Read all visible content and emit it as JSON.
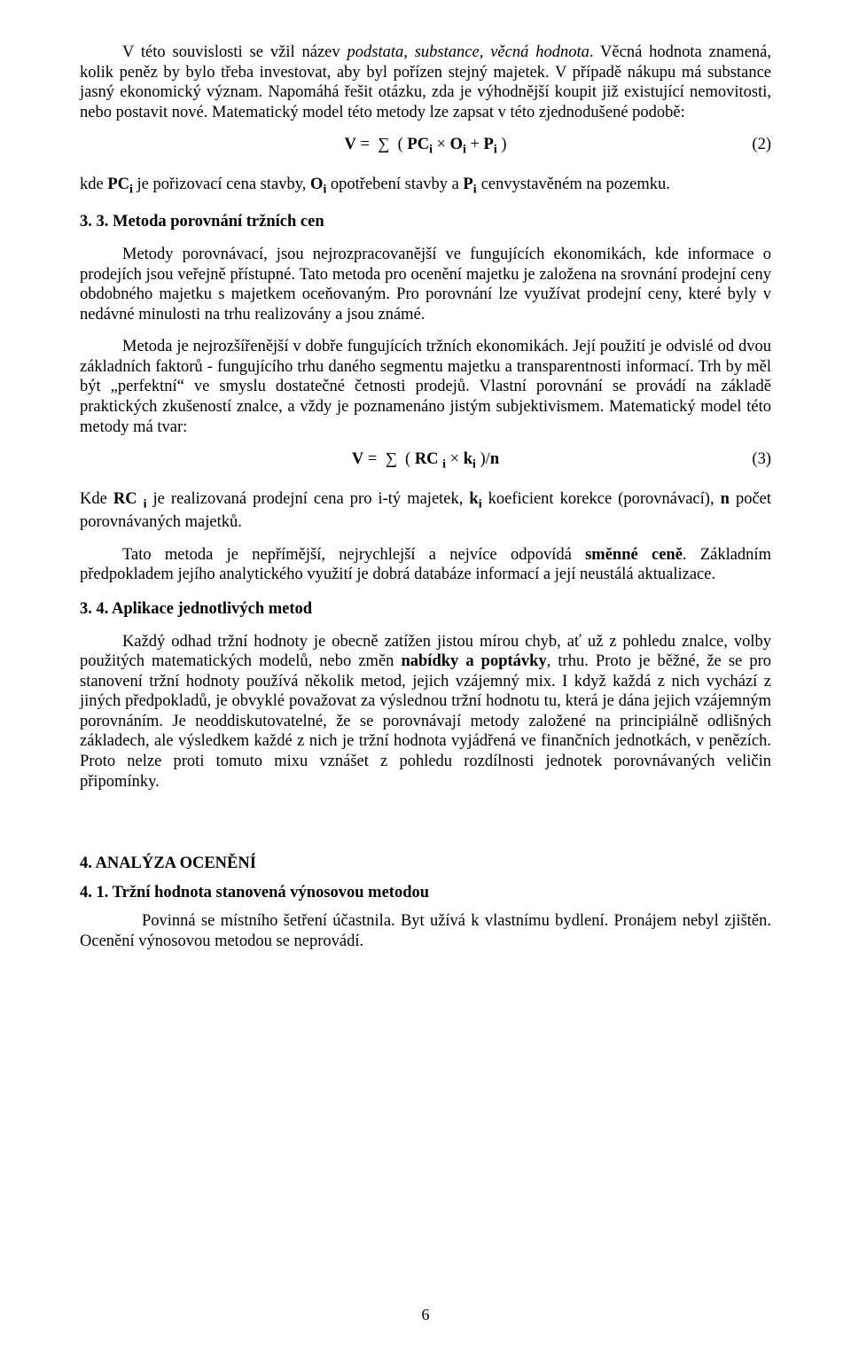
{
  "colors": {
    "text": "#000000",
    "background": "#ffffff"
  },
  "typography": {
    "family": "Times New Roman",
    "body_size_pt": 14,
    "line_height": 1.22
  },
  "p1": {
    "t1": "V této souvislosti se vžil název ",
    "t2": "podstata, substance, věcná hodnota",
    "t3": ". Věcná hodnota znamená, kolik peněz by bylo třeba investovat, aby byl pořízen stejný majetek. V případě nákupu má substance jasný ekonomický význam. Napomáhá řešit otázku, zda je výhodnější koupit již existující nemovitosti, nebo postavit nové. Matematický model této metody lze zapsat v této zjednodušené podobě:"
  },
  "formula2": {
    "display": "V =  ∑  ( PCᵢ × Oᵢ + Pᵢ )",
    "number": "(2)"
  },
  "p2": {
    "t1": "kde ",
    "pc": "PC",
    "t2": " je pořizovací cena stavby,  ",
    "o": "O",
    "t3": " opotřebení stavby a ",
    "p": "P",
    "t4": " cenvystavěném na pozemku.",
    "sub": "i"
  },
  "h33": "3. 3.  Metoda porovnání tržních cen",
  "p3": "Metody porovnávací, jsou nejrozpracovanější ve fungujících ekonomikách, kde informace o prodejích jsou veřejně přístupné. Tato metoda pro ocenění majetku je založena na srovnání prodejní ceny obdobného majetku s majetkem oceňovaným. Pro porovnání lze využívat prodejní ceny, které byly v nedávné minulosti na trhu realizovány a jsou známé.",
  "p4": "Metoda je nejrozšířenější v dobře fungujících tržních ekonomikách. Její použití je odvislé od dvou základních faktorů - fungujícího trhu daného segmentu majetku a transparentnosti informací. Trh by měl být „perfektní“ ve smyslu dostatečné četnosti prodejů. Vlastní porovnání se provádí na základě praktických zkušeností znalce, a vždy je poznamenáno jistým subjektivismem. Matematický model této metody má tvar:",
  "formula3": {
    "display": "V =  ∑  ( RC ᵢ × kᵢ )/n",
    "number": "(3)"
  },
  "p5": {
    "t1": "Kde ",
    "rc": "RC ",
    "t2": " je realizovaná prodejní cena pro i-tý majetek, ",
    "k": "k",
    "t3": " koeficient korekce (porovnávací), ",
    "n": "n",
    "t4": " počet porovnávaných majetků.",
    "sub": "i"
  },
  "p6": {
    "t1": "Tato metoda je nepřímější, nejrychlejší a nejvíce odpovídá ",
    "b": "směnné ceně",
    "t2": ". Základním předpokladem jejího analytického využití je dobrá databáze informací a její neustálá aktualizace."
  },
  "h34": "3. 4.   Aplikace jednotlivých metod",
  "p7": {
    "t1": "Každý odhad tržní hodnoty je obecně zatížen jistou mírou chyb, ať už z pohledu znalce, volby použitých matematických modelů, nebo změn ",
    "b": "nabídky a poptávky",
    "t2": ", trhu. Proto je běžné, že se pro stanovení tržní hodnoty používá několik metod, jejich vzájemný mix. I když každá z nich vychází z jiných předpokladů, je obvyklé považovat za výslednou tržní hodnotu tu, která je dána jejich vzájemným porovnáním. Je neoddiskutovatelné, že se porovnávají metody založené na principiálně odlišných základech, ale výsledkem každé z nich je tržní hodnota vyjádřená ve finančních jednotkách, v penězích. Proto nelze proti tomuto mixu vznášet z pohledu rozdílnosti jednotek porovnávaných veličin připomínky."
  },
  "h4": "4.   ANALÝZA OCENĚNÍ",
  "h41": "4. 1.     Tržní hodnota stanovená výnosovou metodou",
  "p8": "Povinná se místního šetření účastnila. Byt užívá k vlastnímu bydlení. Pronájem nebyl zjištěn. Ocenění výnosovou metodou se neprovádí.",
  "pagenum": "6"
}
